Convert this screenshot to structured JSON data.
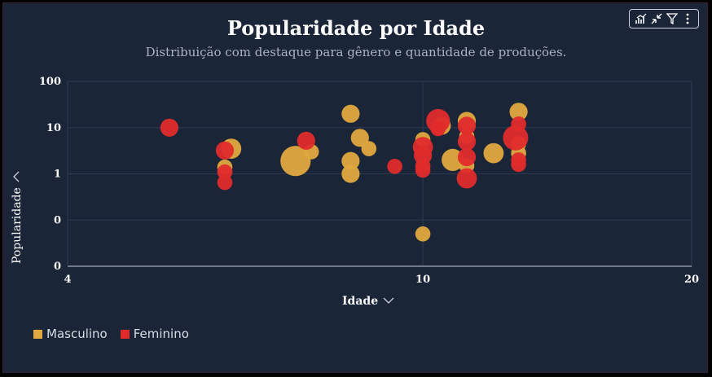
{
  "title": "Popularidade por Idade",
  "subtitle": "Distribuição com destaque para gênero e quantidade de produções.",
  "toolbar": {
    "icons": [
      "insights-icon",
      "collapse-icon",
      "filter-icon",
      "more-vert-icon"
    ]
  },
  "colors": {
    "background": "#1b2538",
    "Masculino": "#e0a83e",
    "Feminino": "#e02b2b",
    "grid": "#2e3a50"
  },
  "legend": [
    {
      "label": "Masculino",
      "color": "#e0a83e"
    },
    {
      "label": "Feminino",
      "color": "#e02b2b"
    }
  ],
  "chart_data": {
    "type": "scatter",
    "title": "Popularidade por Idade",
    "subtitle": "Distribuição com destaque para gênero e quantidade de produções.",
    "xlabel": "Idade",
    "ylabel": "Popularidade",
    "x_scale": "log",
    "y_scale": "log",
    "xlim": [
      4,
      20
    ],
    "x_ticks": [
      "4",
      "10",
      "20"
    ],
    "y_ticks": [
      "100",
      "10",
      "1",
      "0",
      "0"
    ],
    "grid": true,
    "legend_position": "bottom-left",
    "series": [
      {
        "name": "Masculino",
        "points": [
          {
            "x": 6.0,
            "y": 1.4,
            "size": 1
          },
          {
            "x": 6.1,
            "y": 3.5,
            "size": 3
          },
          {
            "x": 7.2,
            "y": 1.9,
            "size": 10
          },
          {
            "x": 7.5,
            "y": 3.0,
            "size": 1
          },
          {
            "x": 8.3,
            "y": 20,
            "size": 2
          },
          {
            "x": 8.3,
            "y": 1.9,
            "size": 2
          },
          {
            "x": 8.3,
            "y": 1.0,
            "size": 2
          },
          {
            "x": 8.5,
            "y": 6.0,
            "size": 2
          },
          {
            "x": 8.7,
            "y": 3.5,
            "size": 1
          },
          {
            "x": 10.0,
            "y": 5.5,
            "size": 1
          },
          {
            "x": 10.0,
            "y": 0.05,
            "size": 1
          },
          {
            "x": 10.5,
            "y": 11,
            "size": 2
          },
          {
            "x": 10.8,
            "y": 2.0,
            "size": 4
          },
          {
            "x": 11.2,
            "y": 14,
            "size": 2
          },
          {
            "x": 11.2,
            "y": 6.5,
            "size": 1
          },
          {
            "x": 11.2,
            "y": 1.5,
            "size": 1
          },
          {
            "x": 12.0,
            "y": 2.8,
            "size": 3
          },
          {
            "x": 12.8,
            "y": 22,
            "size": 2
          },
          {
            "x": 12.8,
            "y": 4.5,
            "size": 1
          },
          {
            "x": 12.8,
            "y": 2.8,
            "size": 1
          }
        ]
      },
      {
        "name": "Feminino",
        "points": [
          {
            "x": 5.2,
            "y": 10,
            "size": 2
          },
          {
            "x": 6.0,
            "y": 3.2,
            "size": 2
          },
          {
            "x": 6.0,
            "y": 1.1,
            "size": 1
          },
          {
            "x": 6.0,
            "y": 0.65,
            "size": 1
          },
          {
            "x": 7.4,
            "y": 5.2,
            "size": 2
          },
          {
            "x": 9.3,
            "y": 1.45,
            "size": 1
          },
          {
            "x": 10.0,
            "y": 3.8,
            "size": 3
          },
          {
            "x": 10.0,
            "y": 2.5,
            "size": 2
          },
          {
            "x": 10.0,
            "y": 1.5,
            "size": 1
          },
          {
            "x": 10.0,
            "y": 1.2,
            "size": 1
          },
          {
            "x": 10.4,
            "y": 14,
            "size": 5
          },
          {
            "x": 10.4,
            "y": 9.5,
            "size": 1
          },
          {
            "x": 11.2,
            "y": 11,
            "size": 2
          },
          {
            "x": 11.2,
            "y": 5.0,
            "size": 2
          },
          {
            "x": 11.2,
            "y": 2.3,
            "size": 2
          },
          {
            "x": 11.2,
            "y": 0.8,
            "size": 3
          },
          {
            "x": 12.8,
            "y": 12,
            "size": 1
          },
          {
            "x": 12.7,
            "y": 6.0,
            "size": 6
          },
          {
            "x": 12.8,
            "y": 2.0,
            "size": 1
          },
          {
            "x": 12.8,
            "y": 1.6,
            "size": 1
          }
        ]
      }
    ]
  }
}
